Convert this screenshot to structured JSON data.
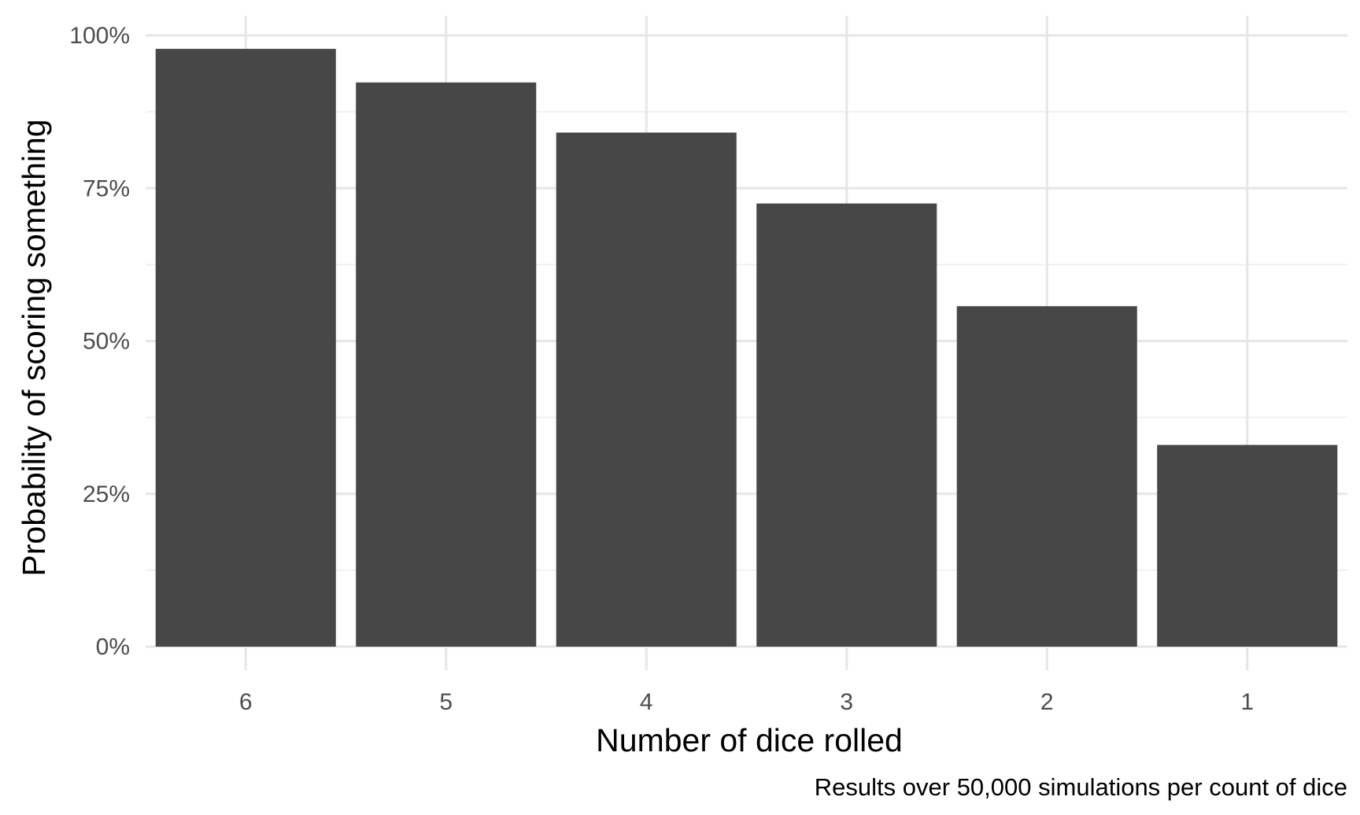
{
  "chart_data": {
    "type": "bar",
    "categories": [
      "6",
      "5",
      "4",
      "3",
      "2",
      "1"
    ],
    "values": [
      97.8,
      92.3,
      84.1,
      72.5,
      55.7,
      33.0
    ],
    "value_unit": "percent",
    "title": "",
    "xlabel": "Number of dice rolled",
    "ylabel": "Probability of scoring something",
    "caption": "Results over 50,000 simulations per count of dice",
    "ylim": [
      0,
      100
    ],
    "y_ticks": [
      0,
      25,
      50,
      75,
      100
    ],
    "y_tick_labels": [
      "0%",
      "25%",
      "50%",
      "75%",
      "100%"
    ],
    "grid": true,
    "legend": "none",
    "colors": {
      "bar": "#474747",
      "grid_major": "#e6e6e6",
      "grid_minor": "#f0f0f0",
      "tick_text": "#4d4d4d",
      "title_text": "#000000"
    }
  }
}
